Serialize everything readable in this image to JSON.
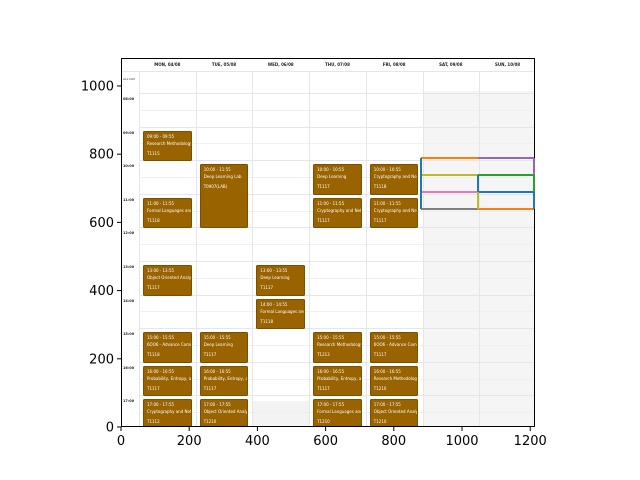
{
  "calendar": {
    "all_day_label": "ALL DAY",
    "days": [
      "MON, 04/08",
      "TUE, 05/08",
      "WED, 06/08",
      "THU, 07/08",
      "FRI, 08/08",
      "SAT, 09/08",
      "SUN, 10/08"
    ],
    "hours": [
      "08:00",
      "09:00",
      "10:00",
      "11:00",
      "12:00",
      "13:00",
      "14:00",
      "15:00",
      "16:00",
      "17:00"
    ],
    "events": [
      {
        "day": 0,
        "start": 9.0,
        "end": 10.0,
        "time": "09:00 - 09:55",
        "title": "Research Methodology",
        "room": "T1115"
      },
      {
        "day": 0,
        "start": 11.0,
        "end": 12.0,
        "time": "11:00 - 11:55",
        "title": "Formal Languages and",
        "room": "T1118"
      },
      {
        "day": 0,
        "start": 13.0,
        "end": 14.0,
        "time": "13:00 - 13:55",
        "title": "Object Oriented Analys",
        "room": "T1117"
      },
      {
        "day": 0,
        "start": 15.0,
        "end": 16.0,
        "time": "15:00 - 15:55",
        "title": "6OO6 - Advance Comi",
        "room": "T1118"
      },
      {
        "day": 0,
        "start": 16.0,
        "end": 17.0,
        "time": "16:00 - 16:55",
        "title": "Probability, Entropy, an",
        "room": "T1117"
      },
      {
        "day": 0,
        "start": 17.0,
        "end": 18.0,
        "time": "17:00 - 17:55",
        "title": "Cryptography and Netw",
        "room": "T1112"
      },
      {
        "day": 1,
        "start": 10.0,
        "end": 12.0,
        "time": "10:00 - 11:55",
        "title": "Deep Learning Lab",
        "room": "T0907(LAB)"
      },
      {
        "day": 1,
        "start": 15.0,
        "end": 16.0,
        "time": "15:00 - 15:55",
        "title": "Deep Learning",
        "room": "T1117"
      },
      {
        "day": 1,
        "start": 16.0,
        "end": 17.0,
        "time": "16:00 - 16:55",
        "title": "Probability, Entropy, an",
        "room": "T1117"
      },
      {
        "day": 1,
        "start": 17.0,
        "end": 18.0,
        "time": "17:00 - 17:55",
        "title": "Object Oriented Analys",
        "room": "T1210"
      },
      {
        "day": 2,
        "start": 13.0,
        "end": 14.0,
        "time": "13:00 - 13:55",
        "title": "Deep Learning",
        "room": "T1117"
      },
      {
        "day": 2,
        "start": 14.0,
        "end": 15.0,
        "time": "14:00 - 14:55",
        "title": "Formal Languages and",
        "room": "T1118"
      },
      {
        "day": 3,
        "start": 10.0,
        "end": 11.0,
        "time": "10:00 - 10:55",
        "title": "Deep Learning",
        "room": "T1117"
      },
      {
        "day": 3,
        "start": 11.0,
        "end": 12.0,
        "time": "11:00 - 11:55",
        "title": "Cryptography and Netw",
        "room": "T1117"
      },
      {
        "day": 3,
        "start": 15.0,
        "end": 16.0,
        "time": "15:00 - 15:55",
        "title": "Research Methodology",
        "room": "T1213"
      },
      {
        "day": 3,
        "start": 16.0,
        "end": 17.0,
        "time": "16:00 - 16:55",
        "title": "Probability, Entropy, an",
        "room": "T1117"
      },
      {
        "day": 3,
        "start": 17.0,
        "end": 18.0,
        "time": "17:00 - 17:55",
        "title": "Formal Languages and",
        "room": "T1210"
      },
      {
        "day": 4,
        "start": 10.0,
        "end": 11.0,
        "time": "10:00 - 10:55",
        "title": "Cryptography and Netw",
        "room": "T1118"
      },
      {
        "day": 4,
        "start": 11.0,
        "end": 12.0,
        "time": "11:00 - 11:55",
        "title": "Cryptography and Netw",
        "room": "T1117"
      },
      {
        "day": 4,
        "start": 15.0,
        "end": 16.0,
        "time": "15:00 - 15:55",
        "title": "6OO6 - Advance Comi",
        "room": "T1117"
      },
      {
        "day": 4,
        "start": 16.0,
        "end": 17.0,
        "time": "16:00 - 16:55",
        "title": "Research Methodology",
        "room": "T1210"
      },
      {
        "day": 4,
        "start": 17.0,
        "end": 18.0,
        "time": "17:00 - 17:55",
        "title": "Object Oriented Analys",
        "room": "T1210"
      }
    ]
  },
  "axes": {
    "x_ticks": [
      "0",
      "200",
      "400",
      "600",
      "800",
      "1000",
      "1200"
    ],
    "y_ticks": [
      "0",
      "200",
      "400",
      "600",
      "800",
      "1000"
    ]
  },
  "colors": {
    "event_fill": "#996300",
    "overlay_lines": [
      "#ff7f0e",
      "#9467bd",
      "#2ca02c",
      "#bcbd22",
      "#1f77b4",
      "#e377c2",
      "#7f7f7f"
    ]
  }
}
